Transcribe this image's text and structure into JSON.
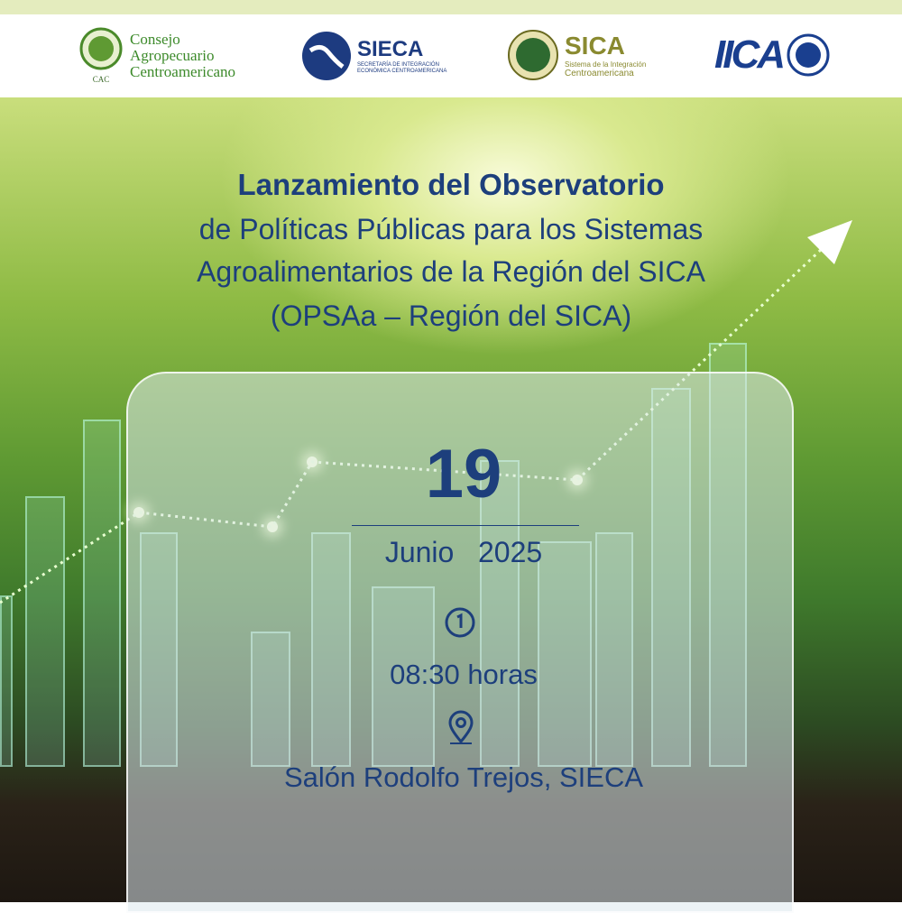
{
  "logos": {
    "cac": {
      "name_line1": "Consejo",
      "name_line2": "Agropecuario",
      "name_line3": "Centroamericano",
      "abbr": "CAC"
    },
    "sieca": {
      "name": "SIECA",
      "subtitle_line1": "SECRETARÍA DE INTEGRACIÓN",
      "subtitle_line2": "ECONÓMICA CENTROAMERICANA"
    },
    "sica": {
      "name": "SICA",
      "subtitle_line1": "Sistema de la Integración",
      "subtitle_line2": "Centroamericana"
    },
    "iica": {
      "name": "IICA"
    }
  },
  "title": {
    "line1": "Lanzamiento del Observatorio",
    "line2": "de Políticas Públicas para los Sistemas",
    "line3": "Agroalimentarios de la Región del SICA",
    "line4": "(OPSAa – Región del SICA)"
  },
  "event": {
    "day": "19",
    "month": "Junio",
    "year": "2025",
    "time": "08:30 horas",
    "place": "Salón Rodolfo Trejos, SIECA"
  },
  "icons": {
    "time": "clock-icon",
    "place": "location-pin-icon"
  },
  "colors": {
    "text": "#1d3f7c",
    "top_strip": "#e4ecbe"
  }
}
